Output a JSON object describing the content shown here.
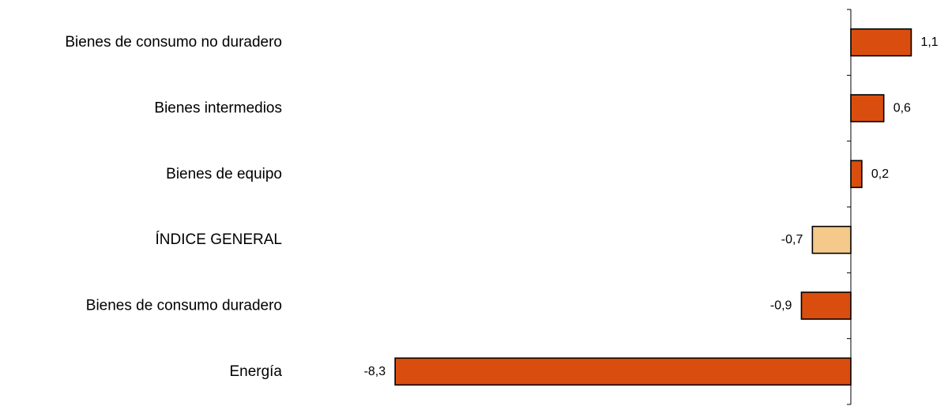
{
  "chart_data": {
    "type": "bar",
    "orientation": "horizontal",
    "categories": [
      "Bienes de consumo no duradero",
      "Bienes intermedios",
      "Bienes de equipo",
      "ÍNDICE GENERAL",
      "Bienes de consumo duradero",
      "Energía"
    ],
    "values": [
      1.1,
      0.6,
      0.2,
      -0.7,
      -0.9,
      -8.3
    ],
    "value_labels": [
      "1,1",
      "0,6",
      "0,2",
      "-0,7",
      "-0,9",
      "-8,3"
    ],
    "xlim": [
      -8.3,
      1.1
    ],
    "grid": false,
    "legend": false,
    "colors": {
      "bar": "#d94e0e",
      "highlight": "#f5c98a",
      "highlight_category": "ÍNDICE GENERAL",
      "axis": "#000000"
    }
  }
}
